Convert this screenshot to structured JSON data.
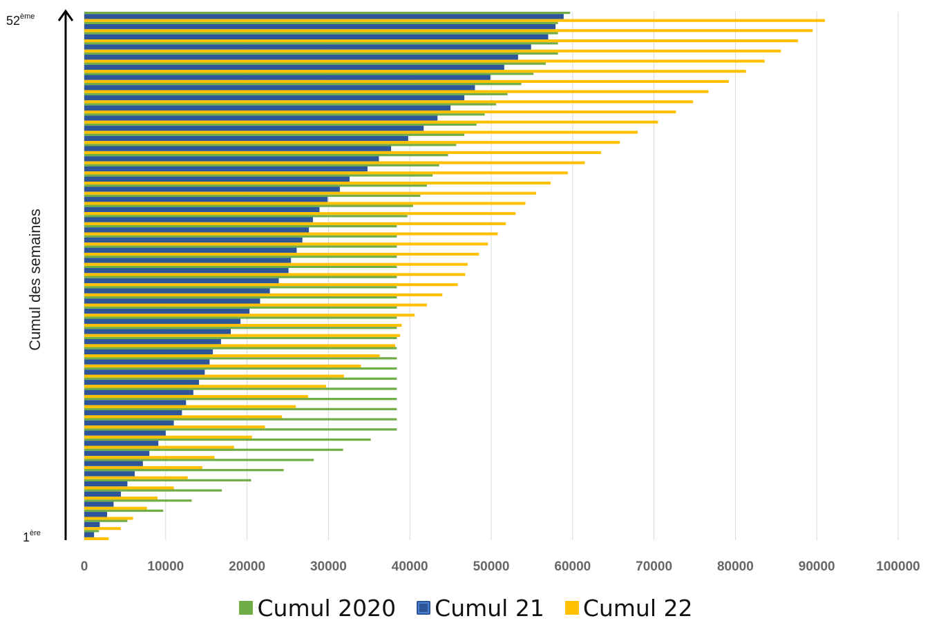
{
  "chart_data": {
    "type": "bar",
    "orientation": "horizontal",
    "ylabel": "Cumul des semaines",
    "y_range_labels": {
      "top_prefix": "52",
      "top_suffix": "ème",
      "bottom_prefix": "1",
      "bottom_suffix": "ère"
    },
    "xlim": [
      0,
      100000
    ],
    "x_ticks": [
      "0",
      "10000",
      "20000",
      "30000",
      "40000",
      "50000",
      "60000",
      "70000",
      "80000",
      "90000",
      "100000"
    ],
    "grid": "vertical",
    "legend_position": "bottom",
    "categories": [
      1,
      2,
      3,
      4,
      5,
      6,
      7,
      8,
      9,
      10,
      11,
      12,
      13,
      14,
      15,
      16,
      17,
      18,
      19,
      20,
      21,
      22,
      23,
      24,
      25,
      26,
      27,
      28,
      29,
      30,
      31,
      32,
      33,
      34,
      35,
      36,
      37,
      38,
      39,
      40,
      41,
      42,
      43,
      44,
      45,
      46,
      47,
      48,
      49,
      50,
      51,
      52
    ],
    "series": [
      {
        "name": "Cumul 2020",
        "color": "#70ad47",
        "values": [
          1800,
          5300,
          9700,
          13200,
          16900,
          20500,
          24500,
          28200,
          31800,
          35200,
          38400,
          38400,
          38400,
          38400,
          38400,
          38400,
          38400,
          38400,
          38400,
          38400,
          38400,
          38400,
          38400,
          38400,
          38400,
          38400,
          38400,
          38400,
          38400,
          38400,
          38400,
          39700,
          40400,
          41300,
          42100,
          42800,
          43600,
          44700,
          45700,
          46700,
          48200,
          49200,
          50600,
          52000,
          53700,
          55200,
          56700,
          58200,
          58200,
          58200,
          58200,
          59700
        ]
      },
      {
        "name": "Cumul 21",
        "color": "#2e5597",
        "values": [
          1200,
          1900,
          2800,
          3600,
          4500,
          5300,
          6200,
          7200,
          8000,
          9100,
          10000,
          11000,
          12000,
          12500,
          13400,
          14100,
          14800,
          15400,
          15800,
          16800,
          18000,
          19200,
          20300,
          21600,
          22800,
          23900,
          25100,
          25400,
          26100,
          26800,
          27600,
          28100,
          28900,
          29900,
          31400,
          32600,
          34800,
          36200,
          37700,
          39800,
          41700,
          43400,
          45000,
          46700,
          48000,
          49900,
          51600,
          53300,
          54900,
          57000,
          57900,
          58900
        ]
      },
      {
        "name": "Cumul 22",
        "color": "#ffc000",
        "values": [
          3000,
          4500,
          6000,
          7700,
          9000,
          11000,
          12700,
          14500,
          16000,
          18400,
          20600,
          22200,
          24300,
          26000,
          27500,
          29700,
          31900,
          34000,
          36300,
          38200,
          38800,
          39000,
          40600,
          42100,
          44000,
          45900,
          46800,
          47100,
          48500,
          49600,
          50800,
          51800,
          53000,
          54200,
          55500,
          57300,
          59400,
          61500,
          63500,
          65800,
          68000,
          70500,
          72700,
          74800,
          76700,
          79200,
          81300,
          83600,
          85600,
          87700,
          89500,
          91000
        ]
      }
    ]
  },
  "legend": {
    "items": [
      {
        "label": "Cumul 2020",
        "color": "#70ad47"
      },
      {
        "label": "Cumul 21",
        "color": "#2e5597"
      },
      {
        "label": "Cumul 22",
        "color": "#ffc000"
      }
    ]
  }
}
